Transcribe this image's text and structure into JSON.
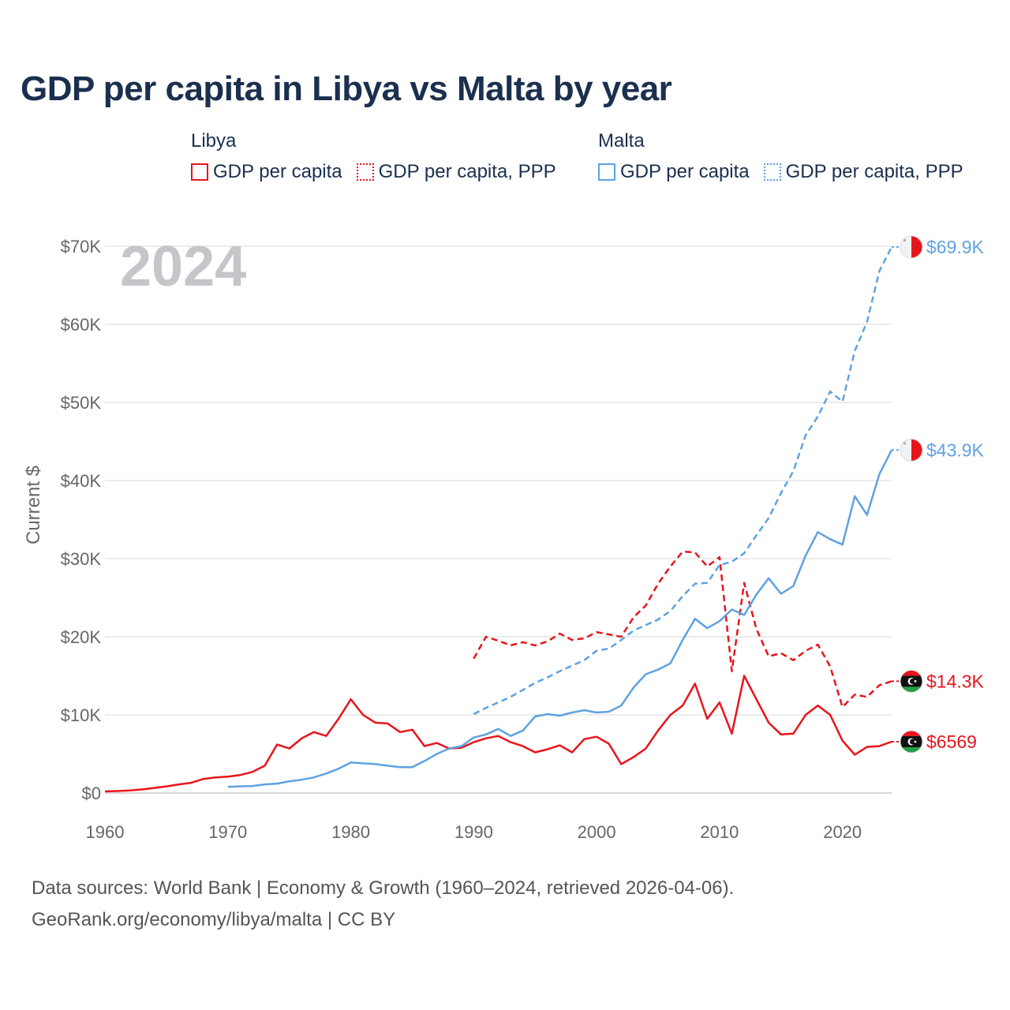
{
  "title": "GDP per capita in Libya vs Malta by year",
  "legend": {
    "groups": [
      {
        "name": "Libya",
        "color": "#e8141c",
        "items": [
          {
            "label": "GDP per capita",
            "style": "solid"
          },
          {
            "label": "GDP per capita, PPP",
            "style": "dotted"
          }
        ]
      },
      {
        "name": "Malta",
        "color": "#5fa2e0",
        "items": [
          {
            "label": "GDP per capita",
            "style": "solid"
          },
          {
            "label": "GDP per capita, PPP",
            "style": "dotted"
          }
        ]
      }
    ]
  },
  "year_overlay": "2024",
  "footer": {
    "line1": "Data sources: World Bank | Economy & Growth (1960–2024, retrieved 2026-04-06).",
    "line2": "GeoRank.org/economy/libya/malta | CC BY"
  },
  "colors": {
    "libya": "#e8141c",
    "malta": "#5fa2e0",
    "text": "#1b2f4e",
    "axis": "#666666",
    "grid": "#e6e6e6"
  },
  "chart_data": {
    "type": "line",
    "title": "GDP per capita in Libya vs Malta by year",
    "xlabel": "",
    "ylabel": "Current $",
    "xlim": [
      1960,
      2024
    ],
    "ylim": [
      0,
      70000
    ],
    "x_ticks": [
      1960,
      1970,
      1980,
      1990,
      2000,
      2010,
      2020
    ],
    "y_ticks": [
      0,
      10000,
      20000,
      30000,
      40000,
      50000,
      60000,
      70000
    ],
    "y_tick_labels": [
      "$0",
      "$10K",
      "$20K",
      "$30K",
      "$40K",
      "$50K",
      "$60K",
      "$70K"
    ],
    "series": [
      {
        "name": "Libya GDP per capita",
        "country": "Libya",
        "dashed": false,
        "color": "#e8141c",
        "end_label": "$6569",
        "flag": "libya",
        "x_start": 1960,
        "values": [
          200,
          250,
          330,
          450,
          650,
          850,
          1100,
          1300,
          1800,
          2000,
          2100,
          2300,
          2700,
          3500,
          6200,
          5700,
          7000,
          7800,
          7300,
          9500,
          12000,
          10000,
          9000,
          8900,
          7800,
          8100,
          6000,
          6400,
          5700,
          5800,
          6500,
          7000,
          7300,
          6500,
          6000,
          5200,
          5600,
          6100,
          5200,
          6900,
          7200,
          6300,
          3700,
          4600,
          5700,
          8000,
          10000,
          11200,
          14000,
          9500,
          11600,
          7600,
          15000,
          12000,
          9000,
          7500,
          7600,
          10000,
          11200,
          10000,
          6700,
          4900,
          5900,
          6000,
          6569
        ]
      },
      {
        "name": "Libya GDP per capita, PPP",
        "country": "Libya",
        "dashed": true,
        "color": "#e8141c",
        "end_label": "$14.3K",
        "flag": "libya",
        "x_start": 1990,
        "values": [
          17200,
          20000,
          19500,
          18900,
          19300,
          18900,
          19400,
          20400,
          19600,
          19800,
          20600,
          20300,
          20000,
          22500,
          24000,
          26800,
          29000,
          30900,
          30800,
          29000,
          30200,
          15600,
          26900,
          21000,
          17500,
          17900,
          17000,
          18200,
          19000,
          16200,
          11000,
          12600,
          12300,
          13800,
          14300
        ]
      },
      {
        "name": "Malta GDP per capita",
        "country": "Malta",
        "dashed": false,
        "color": "#5fa2e0",
        "end_label": "$43.9K",
        "flag": "malta",
        "x_start": 1970,
        "values": [
          800,
          850,
          900,
          1100,
          1200,
          1500,
          1700,
          2000,
          2500,
          3100,
          3900,
          3800,
          3700,
          3500,
          3300,
          3300,
          4100,
          5000,
          5700,
          6000,
          7100,
          7500,
          8200,
          7300,
          8000,
          9800,
          10100,
          9900,
          10300,
          10600,
          10300,
          10400,
          11200,
          13500,
          15200,
          15800,
          16600,
          19600,
          22300,
          21100,
          22000,
          23500,
          22800,
          25400,
          27500,
          25500,
          26500,
          30400,
          33400,
          32500,
          31800,
          38000,
          35600,
          40800,
          43900
        ]
      },
      {
        "name": "Malta GDP per capita, PPP",
        "country": "Malta",
        "dashed": true,
        "color": "#5fa2e0",
        "end_label": "$69.9K",
        "flag": "malta",
        "x_start": 1990,
        "values": [
          10100,
          10900,
          11600,
          12300,
          13200,
          14100,
          14800,
          15600,
          16300,
          17000,
          18200,
          18500,
          19600,
          20800,
          21500,
          22200,
          23300,
          25200,
          26800,
          26900,
          29200,
          29600,
          30700,
          33000,
          35200,
          38400,
          41200,
          45800,
          48200,
          51400,
          50100,
          56600,
          60300,
          66800,
          69900
        ]
      }
    ]
  }
}
